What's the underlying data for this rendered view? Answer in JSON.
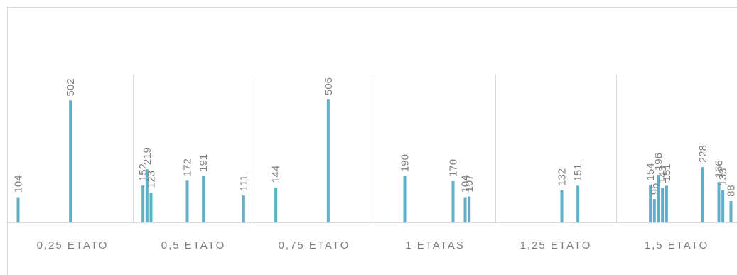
{
  "chart_data": {
    "type": "grouped-slot-bar",
    "color": "#5fafc8",
    "ylim": [
      0,
      600
    ],
    "groups": [
      {
        "label": "0,25 ETATO",
        "values": [
          null,
          104,
          null,
          null,
          null,
          null,
          null,
          null,
          null,
          null,
          null,
          null,
          null,
          null,
          502,
          null,
          null,
          null,
          null,
          null,
          null,
          null,
          null,
          null,
          null,
          null,
          null,
          null,
          null,
          null
        ]
      },
      {
        "label": "0,5 ETATO",
        "values": [
          null,
          null,
          152,
          219,
          123,
          null,
          null,
          null,
          null,
          null,
          null,
          null,
          null,
          172,
          null,
          null,
          null,
          191,
          null,
          null,
          null,
          null,
          null,
          null,
          null,
          null,
          null,
          111,
          null,
          null
        ]
      },
      {
        "label": "0,75 ETATO",
        "values": [
          null,
          null,
          null,
          null,
          null,
          144,
          null,
          null,
          null,
          null,
          null,
          null,
          null,
          null,
          null,
          null,
          null,
          null,
          506,
          null,
          null,
          null,
          null,
          null,
          null,
          null,
          null,
          null,
          null,
          null
        ]
      },
      {
        "label": "1 ETATAS",
        "values": [
          null,
          null,
          null,
          null,
          null,
          null,
          null,
          190,
          null,
          null,
          null,
          null,
          null,
          null,
          null,
          null,
          null,
          null,
          null,
          170,
          null,
          null,
          104,
          107,
          null,
          null,
          null,
          null,
          null,
          null
        ]
      },
      {
        "label": "1,25 ETATO",
        "values": [
          null,
          null,
          null,
          null,
          null,
          null,
          null,
          null,
          null,
          null,
          null,
          null,
          null,
          null,
          null,
          null,
          132,
          null,
          null,
          null,
          151,
          null,
          null,
          null,
          null,
          null,
          null,
          null,
          null,
          null
        ]
      },
      {
        "label": "1,5 ETATO",
        "values": [
          null,
          null,
          null,
          null,
          null,
          null,
          null,
          null,
          154,
          96,
          196,
          143,
          151,
          null,
          null,
          null,
          null,
          null,
          null,
          null,
          null,
          228,
          null,
          null,
          null,
          166,
          133,
          null,
          88,
          null
        ]
      }
    ]
  }
}
